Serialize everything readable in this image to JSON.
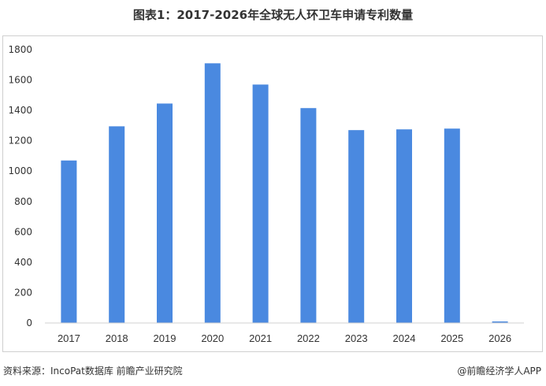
{
  "title": "图表1：2017-2026年全球无人环卫车申请专利数量",
  "chart_data": {
    "type": "bar",
    "categories": [
      "2017",
      "2018",
      "2019",
      "2020",
      "2021",
      "2022",
      "2023",
      "2024",
      "2025",
      "2026"
    ],
    "values": [
      1070,
      1295,
      1445,
      1710,
      1570,
      1415,
      1270,
      1275,
      1280,
      10
    ],
    "ylim": [
      0,
      1800
    ],
    "yticks": [
      0,
      200,
      400,
      600,
      800,
      1000,
      1200,
      1400,
      1600,
      1800
    ],
    "grid": false,
    "legend": "none",
    "bar_color": "#4a89e0"
  },
  "footer": {
    "source": "资料来源：IncoPat数据库  前瞻产业研究院",
    "brand": "@前瞻经济学人APP"
  }
}
